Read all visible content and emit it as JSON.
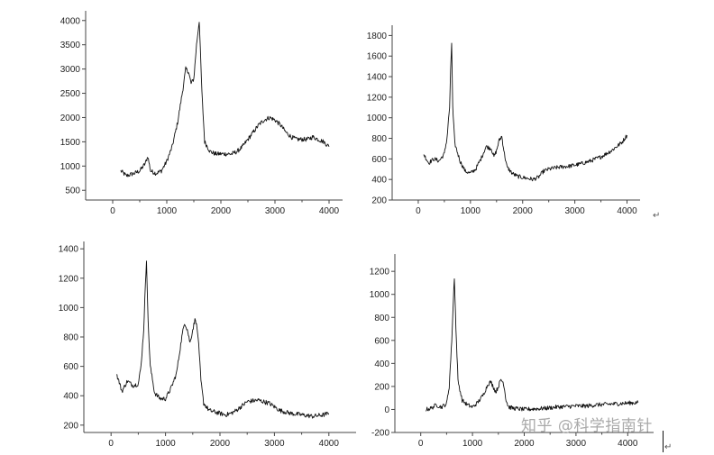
{
  "chart_data": [
    {
      "type": "line",
      "xlim": [
        -500,
        4250
      ],
      "ylim": [
        300,
        4200
      ],
      "x_ticks": [
        0,
        1000,
        2000,
        3000,
        4000
      ],
      "y_ticks": [
        500,
        1000,
        1500,
        2000,
        2500,
        3000,
        3500,
        4000
      ],
      "x_tick_labels": [
        "0",
        "1000",
        "2000",
        "3000",
        "4000"
      ],
      "y_tick_labels": [
        "500",
        "1000",
        "1500",
        "2000",
        "2500",
        "3000",
        "3500",
        "4000"
      ],
      "grid": false,
      "series": [
        {
          "color": "#111111",
          "x": [
            150,
            250,
            400,
            500,
            600,
            650,
            700,
            800,
            900,
            1000,
            1100,
            1200,
            1300,
            1350,
            1400,
            1450,
            1500,
            1550,
            1600,
            1650,
            1700,
            1800,
            1900,
            2000,
            2100,
            2200,
            2300,
            2400,
            2500,
            2600,
            2700,
            2800,
            2900,
            3000,
            3100,
            3200,
            3300,
            3400,
            3500,
            3600,
            3700,
            3800,
            3900,
            4000
          ],
          "y": [
            900,
            800,
            850,
            900,
            1050,
            1200,
            900,
            850,
            900,
            1100,
            1400,
            1900,
            2600,
            3000,
            2950,
            2700,
            2800,
            3500,
            4000,
            2500,
            1500,
            1300,
            1250,
            1250,
            1250,
            1250,
            1300,
            1400,
            1550,
            1700,
            1850,
            1950,
            2000,
            1950,
            1850,
            1700,
            1600,
            1550,
            1550,
            1550,
            1600,
            1550,
            1500,
            1400
          ]
        }
      ]
    },
    {
      "type": "line",
      "xlim": [
        -500,
        4250
      ],
      "ylim": [
        200,
        1900
      ],
      "x_ticks": [
        0,
        1000,
        2000,
        3000,
        4000
      ],
      "y_ticks": [
        200,
        400,
        600,
        800,
        1000,
        1200,
        1400,
        1600,
        1800
      ],
      "x_tick_labels": [
        "0",
        "1000",
        "2000",
        "3000",
        "4000"
      ],
      "y_tick_labels": [
        "200",
        "400",
        "600",
        "800",
        "1000",
        "1200",
        "1400",
        "1600",
        "1800"
      ],
      "grid": false,
      "series": [
        {
          "color": "#111111",
          "x": [
            100,
            200,
            300,
            400,
            500,
            550,
            600,
            620,
            640,
            660,
            700,
            800,
            900,
            1000,
            1100,
            1200,
            1300,
            1400,
            1450,
            1500,
            1550,
            1600,
            1650,
            1700,
            1800,
            1900,
            2000,
            2100,
            2200,
            2300,
            2400,
            2500,
            2700,
            2900,
            3100,
            3300,
            3500,
            3700,
            3900,
            4000
          ],
          "y": [
            650,
            560,
            600,
            580,
            650,
            800,
            1100,
            1450,
            1730,
            1100,
            750,
            580,
            480,
            460,
            500,
            600,
            720,
            700,
            620,
            680,
            780,
            820,
            650,
            520,
            460,
            430,
            420,
            410,
            400,
            420,
            480,
            500,
            520,
            530,
            550,
            580,
            620,
            680,
            760,
            830
          ]
        }
      ]
    },
    {
      "type": "line",
      "xlim": [
        -500,
        4500
      ],
      "ylim": [
        150,
        1450
      ],
      "x_ticks": [
        0,
        1000,
        2000,
        3000,
        4000
      ],
      "y_ticks": [
        200,
        400,
        600,
        800,
        1000,
        1200,
        1400
      ],
      "x_tick_labels": [
        "0",
        "1000",
        "2000",
        "3000",
        "4000"
      ],
      "y_tick_labels": [
        "200",
        "400",
        "600",
        "800",
        "1000",
        "1200",
        "1400"
      ],
      "grid": false,
      "series": [
        {
          "color": "#111111",
          "x": [
            100,
            200,
            300,
            400,
            500,
            550,
            600,
            630,
            650,
            680,
            720,
            800,
            900,
            1000,
            1100,
            1200,
            1300,
            1350,
            1400,
            1450,
            1500,
            1550,
            1600,
            1650,
            1700,
            1800,
            1900,
            2000,
            2100,
            2200,
            2300,
            2400,
            2500,
            2700,
            2900,
            3100,
            3300,
            3500,
            3700,
            3900,
            4000
          ],
          "y": [
            550,
            430,
            500,
            470,
            480,
            600,
            850,
            1150,
            1330,
            900,
            600,
            420,
            380,
            380,
            450,
            550,
            800,
            900,
            850,
            760,
            850,
            930,
            800,
            500,
            350,
            300,
            290,
            280,
            270,
            280,
            300,
            330,
            360,
            370,
            350,
            300,
            280,
            270,
            260,
            270,
            280
          ]
        }
      ]
    },
    {
      "type": "line",
      "xlim": [
        -500,
        4500
      ],
      "ylim": [
        -200,
        1350
      ],
      "x_ticks": [
        0,
        1000,
        2000,
        3000,
        4000
      ],
      "y_ticks": [
        -200,
        0,
        200,
        400,
        600,
        800,
        1000,
        1200
      ],
      "x_tick_labels": [
        "0",
        "1000",
        "2000",
        "3000",
        "4000"
      ],
      "y_tick_labels": [
        "-200",
        "0",
        "200",
        "400",
        "600",
        "800",
        "1000",
        "1200"
      ],
      "grid": false,
      "series": [
        {
          "color": "#111111",
          "x": [
            100,
            200,
            300,
            400,
            500,
            550,
            600,
            630,
            650,
            680,
            720,
            800,
            900,
            1000,
            1100,
            1200,
            1300,
            1350,
            1400,
            1450,
            1500,
            1550,
            1600,
            1650,
            1700,
            1800,
            1900,
            2000,
            2200,
            2400,
            2600,
            2800,
            3000,
            3200,
            3400,
            3600,
            3800,
            4000,
            4200
          ],
          "y": [
            0,
            10,
            40,
            20,
            50,
            200,
            600,
            950,
            1150,
            700,
            250,
            80,
            40,
            20,
            60,
            120,
            220,
            240,
            200,
            150,
            200,
            260,
            230,
            80,
            20,
            10,
            5,
            0,
            5,
            10,
            20,
            25,
            30,
            30,
            40,
            45,
            50,
            55,
            60
          ]
        }
      ]
    }
  ],
  "watermark": "知乎 @科学指南针",
  "para_marks": [
    "↵",
    "↵"
  ]
}
